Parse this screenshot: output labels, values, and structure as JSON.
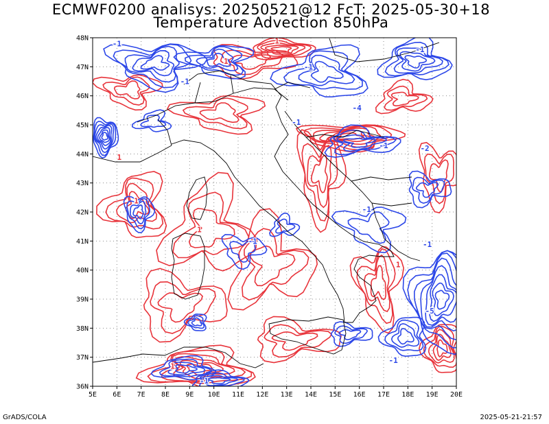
{
  "title_line1": "ECMWF0200 analisys: 20250521@12 FcT: 2025-05-30+18",
  "title_line2": "Temperature Advection 850hPa",
  "footer_left": "GrADS/COLA",
  "footer_right": "2025-05-21-21:57",
  "map": {
    "lon_range": [
      5,
      20
    ],
    "lat_range": [
      36,
      48
    ],
    "lon_ticks": [
      "5E",
      "6E",
      "7E",
      "8E",
      "9E",
      "10E",
      "11E",
      "12E",
      "13E",
      "14E",
      "15E",
      "16E",
      "17E",
      "18E",
      "19E",
      "20E"
    ],
    "lat_ticks": [
      "36N",
      "37N",
      "38N",
      "39N",
      "40N",
      "41N",
      "42N",
      "43N",
      "44N",
      "45N",
      "46N",
      "47N",
      "48N"
    ],
    "grid": "dotted",
    "colors": {
      "positive_contours": "#e8333a",
      "negative_contours": "#2c47e8",
      "coastline": "#000000",
      "grid": "#8a8a8a"
    },
    "contour_labels": [
      {
        "text": "-1",
        "lon": 6.0,
        "lat": 47.7,
        "sign": "neg"
      },
      {
        "text": "-1",
        "lon": 8.8,
        "lat": 46.4,
        "sign": "neg"
      },
      {
        "text": "1",
        "lon": 10.5,
        "lat": 47.1,
        "sign": "pos"
      },
      {
        "text": "1",
        "lon": 12.6,
        "lat": 47.8,
        "sign": "pos"
      },
      {
        "text": "-1",
        "lon": 13.9,
        "lat": 46.9,
        "sign": "neg"
      },
      {
        "text": "-1",
        "lon": 18.5,
        "lat": 47.5,
        "sign": "neg"
      },
      {
        "text": "-1",
        "lon": 13.4,
        "lat": 45.0,
        "sign": "neg"
      },
      {
        "text": "-4",
        "lon": 15.9,
        "lat": 45.5,
        "sign": "neg"
      },
      {
        "text": "-1",
        "lon": 17.0,
        "lat": 44.2,
        "sign": "neg"
      },
      {
        "text": "-2",
        "lon": 18.7,
        "lat": 44.1,
        "sign": "neg"
      },
      {
        "text": "1",
        "lon": 6.1,
        "lat": 43.8,
        "sign": "pos"
      },
      {
        "text": "1",
        "lon": 6.8,
        "lat": 42.3,
        "sign": "pos"
      },
      {
        "text": "1",
        "lon": 9.4,
        "lat": 41.3,
        "sign": "pos"
      },
      {
        "text": "-1",
        "lon": 11.6,
        "lat": 40.9,
        "sign": "neg"
      },
      {
        "text": "-1",
        "lon": 16.3,
        "lat": 42.0,
        "sign": "neg"
      },
      {
        "text": "-1",
        "lon": 18.8,
        "lat": 40.8,
        "sign": "neg"
      },
      {
        "text": "-5",
        "lon": 18.9,
        "lat": 38.5,
        "sign": "neg"
      },
      {
        "text": "1",
        "lon": 17.6,
        "lat": 40.1,
        "sign": "pos"
      },
      {
        "text": "-1",
        "lon": 17.4,
        "lat": 36.8,
        "sign": "neg"
      },
      {
        "text": "1",
        "lon": 8.3,
        "lat": 36.6,
        "sign": "pos"
      },
      {
        "text": "-1",
        "lon": 9.6,
        "lat": 36.1,
        "sign": "neg"
      }
    ]
  }
}
